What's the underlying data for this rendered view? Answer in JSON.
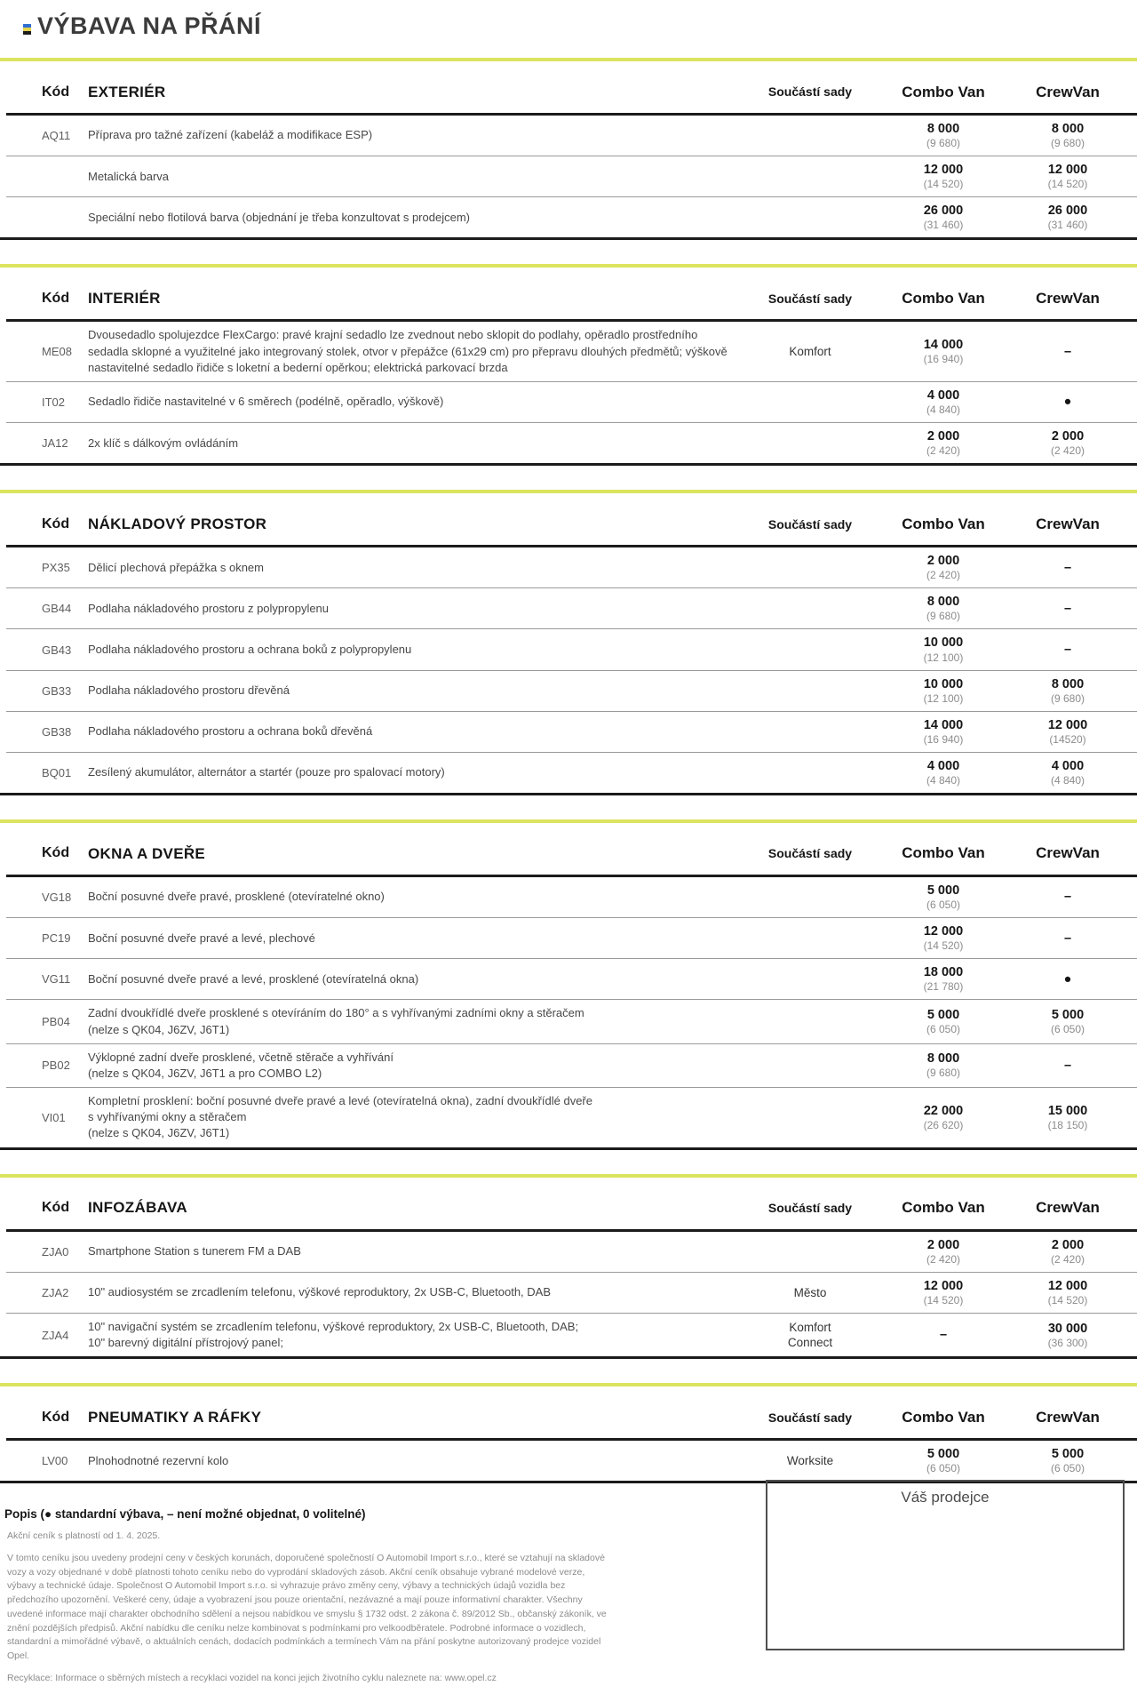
{
  "page": {
    "title": "VÝBAVA NA PŘÁNÍ",
    "legend": "Popis (● standardní výbava, – není možné objednat, 0 volitelné)"
  },
  "columns": {
    "code": "Kód",
    "bundle": "Součástí sady",
    "combo": "Combo Van",
    "crew": "CrewVan"
  },
  "sections": [
    {
      "name": "EXTERIÉR",
      "rows": [
        {
          "code": "AQ11",
          "desc": "Příprava pro tažné zařízení (kabeláž a modifikace ESP)",
          "bundle": "",
          "combo": {
            "price": "8 000",
            "alt": "(9 680)"
          },
          "crew": {
            "price": "8 000",
            "alt": "(9 680)"
          }
        },
        {
          "code": "",
          "desc": "Metalická barva",
          "bundle": "",
          "combo": {
            "price": "12 000",
            "alt": "(14 520)"
          },
          "crew": {
            "price": "12 000",
            "alt": "(14 520)"
          }
        },
        {
          "code": "",
          "desc": "Speciální nebo flotilová barva (objednání je třeba konzultovat s prodejcem)",
          "bundle": "",
          "combo": {
            "price": "26 000",
            "alt": "(31 460)"
          },
          "crew": {
            "price": "26 000",
            "alt": "(31 460)"
          }
        }
      ]
    },
    {
      "name": "INTERIÉR",
      "rows": [
        {
          "code": "ME08",
          "desc": "Dvousedadlo spolujezdce FlexCargo: pravé krajní sedadlo lze zvednout nebo sklopit do podlahy, opěradlo prostředního sedadla sklopné a využitelné jako integrovaný stolek, otvor v přepážce (61x29 cm) pro přepravu dlouhých předmětů; výškově nastavitelné sedadlo řidiče s loketní a bederní opěrkou; elektrická parkovací brzda",
          "bundle": "Komfort",
          "combo": {
            "price": "14 000",
            "alt": "(16 940)"
          },
          "crew": {
            "price": "–",
            "alt": ""
          }
        },
        {
          "code": "IT02",
          "desc": "Sedadlo řidiče nastavitelné v 6 směrech (podélně, opěradlo, výškově)",
          "bundle": "",
          "combo": {
            "price": "4 000",
            "alt": "(4 840)"
          },
          "crew": {
            "price": "●",
            "alt": ""
          }
        },
        {
          "code": "JA12",
          "desc": "2x klíč s dálkovým ovládáním",
          "bundle": "",
          "combo": {
            "price": "2 000",
            "alt": "(2 420)"
          },
          "crew": {
            "price": "2 000",
            "alt": "(2 420)"
          }
        }
      ]
    },
    {
      "name": "NÁKLADOVÝ PROSTOR",
      "rows": [
        {
          "code": "PX35",
          "desc": "Dělicí plechová přepážka s oknem",
          "bundle": "",
          "combo": {
            "price": "2 000",
            "alt": "(2 420)"
          },
          "crew": {
            "price": "–",
            "alt": ""
          }
        },
        {
          "code": "GB44",
          "desc": "Podlaha nákladového prostoru z polypropylenu",
          "bundle": "",
          "combo": {
            "price": "8 000",
            "alt": "(9 680)"
          },
          "crew": {
            "price": "–",
            "alt": ""
          }
        },
        {
          "code": "GB43",
          "desc": "Podlaha nákladového prostoru a ochrana boků z polypropylenu",
          "bundle": "",
          "combo": {
            "price": "10 000",
            "alt": "(12 100)"
          },
          "crew": {
            "price": "–",
            "alt": ""
          }
        },
        {
          "code": "GB33",
          "desc": "Podlaha nákladového prostoru dřevěná",
          "bundle": "",
          "combo": {
            "price": "10 000",
            "alt": "(12 100)"
          },
          "crew": {
            "price": "8 000",
            "alt": "(9 680)"
          }
        },
        {
          "code": "GB38",
          "desc": "Podlaha nákladového prostoru a ochrana boků dřevěná",
          "bundle": "",
          "combo": {
            "price": "14 000",
            "alt": "(16 940)"
          },
          "crew": {
            "price": "12 000",
            "alt": "(14520)"
          }
        },
        {
          "code": "BQ01",
          "desc": "Zesílený akumulátor, alternátor a startér (pouze pro spalovací motory)",
          "bundle": "",
          "combo": {
            "price": "4 000",
            "alt": "(4 840)"
          },
          "crew": {
            "price": "4 000",
            "alt": "(4 840)"
          }
        }
      ]
    },
    {
      "name": "OKNA A DVEŘE",
      "rows": [
        {
          "code": "VG18",
          "desc": "Boční posuvné dveře pravé, prosklené (otevíratelné okno)",
          "bundle": "",
          "combo": {
            "price": "5 000",
            "alt": "(6 050)"
          },
          "crew": {
            "price": "–",
            "alt": ""
          }
        },
        {
          "code": "PC19",
          "desc": "Boční posuvné dveře pravé a levé, plechové",
          "bundle": "",
          "combo": {
            "price": "12 000",
            "alt": "(14 520)"
          },
          "crew": {
            "price": "–",
            "alt": ""
          }
        },
        {
          "code": "VG11",
          "desc": "Boční posuvné dveře pravé a levé, prosklené (otevíratelná okna)",
          "bundle": "",
          "combo": {
            "price": "18 000",
            "alt": "(21 780)"
          },
          "crew": {
            "price": "●",
            "alt": ""
          }
        },
        {
          "code": "PB04",
          "desc": "Zadní dvoukřídlé dveře prosklené s otevíráním do 180° a s vyhřívanými zadními okny a stěračem\n(nelze s QK04, J6ZV, J6T1)",
          "bundle": "",
          "combo": {
            "price": "5 000",
            "alt": "(6 050)"
          },
          "crew": {
            "price": "5 000",
            "alt": "(6 050)"
          }
        },
        {
          "code": "PB02",
          "desc": "Výklopné zadní dveře prosklené, včetně stěrače a vyhřívání\n(nelze s QK04, J6ZV, J6T1 a pro COMBO L2)",
          "bundle": "",
          "combo": {
            "price": "8 000",
            "alt": "(9 680)"
          },
          "crew": {
            "price": "–",
            "alt": ""
          }
        },
        {
          "code": "VI01",
          "desc": "Kompletní prosklení: boční posuvné dveře pravé a levé (otevíratelná okna), zadní dvoukřídlé dveře\ns vyhřívanými okny a stěračem\n(nelze s QK04, J6ZV, J6T1)",
          "bundle": "",
          "combo": {
            "price": "22 000",
            "alt": "(26 620)"
          },
          "crew": {
            "price": "15 000",
            "alt": "(18 150)"
          }
        }
      ]
    },
    {
      "name": "INFOZÁBAVA",
      "rows": [
        {
          "code": "ZJA0",
          "desc": "Smartphone Station s tunerem FM a DAB",
          "bundle": "",
          "combo": {
            "price": "2 000",
            "alt": "(2 420)"
          },
          "crew": {
            "price": "2 000",
            "alt": "(2 420)"
          }
        },
        {
          "code": "ZJA2",
          "desc": "10\" audiosystém se zrcadlením telefonu, výškové reproduktory, 2x USB-C, Bluetooth, DAB",
          "bundle": "Město",
          "combo": {
            "price": "12 000",
            "alt": "(14 520)"
          },
          "crew": {
            "price": "12 000",
            "alt": "(14 520)"
          }
        },
        {
          "code": "ZJA4",
          "desc": "10\" navigační systém se zrcadlením telefonu, výškové reproduktory, 2x USB-C, Bluetooth, DAB;\n10\" barevný digitální přístrojový panel;",
          "bundle": "Komfort\nConnect",
          "combo": {
            "price": "–",
            "alt": ""
          },
          "crew": {
            "price": "30 000",
            "alt": "(36 300)"
          }
        }
      ]
    },
    {
      "name": "PNEUMATIKY A RÁFKY",
      "rows": [
        {
          "code": "LV00",
          "desc": "Plnohodnotné rezervní kolo",
          "bundle": "Worksite",
          "combo": {
            "price": "5 000",
            "alt": "(6 050)"
          },
          "crew": {
            "price": "5 000",
            "alt": "(6 050)"
          }
        }
      ]
    }
  ],
  "footer": {
    "dealer_box": "Váš prodejce",
    "validity": "Akční ceník s platností od 1. 4. 2025.",
    "legal": "V tomto ceníku jsou uvedeny prodejní ceny v českých korunách, doporučené společností O Automobil Import s.r.o., které se vztahují na skladové vozy a vozy objednané v době platnosti tohoto ceníku nebo do vyprodání skladových zásob. Akční ceník obsahuje vybrané modelové verze, výbavy a technické údaje. Společnost O Automobil Import s.r.o. si vyhrazuje právo změny ceny, výbavy a technických údajů vozidla bez předchozího upozornění. Veškeré ceny, údaje a vyobrazení jsou pouze orientační, nezávazné a mají pouze informativní charakter. Všechny uvedené informace mají charakter obchodního sdělení a nejsou nabídkou ve smyslu § 1732 odst. 2 zákona č. 89/2012 Sb., občanský zákoník, ve znění pozdějších předpisů. Akční nabídku dle ceníku nelze kombinovat s podmínkami pro velkoodběratele. Podrobné informace o vozidlech, standardní a mimořádné výbavě, o aktuálních cenách, dodacích podmínkách a termínech Vám na přání poskytne autorizovaný prodejce vozidel Opel.",
    "recycling": "Recyklace: Informace o sběrných místech a recyklaci vozidel na konci jejich životního cyklu naleznete na: www.opel.cz"
  },
  "colors": {
    "accent_lime": "#dbe45f",
    "rule_dark": "#1b1b1b",
    "price_text": "#161616"
  }
}
